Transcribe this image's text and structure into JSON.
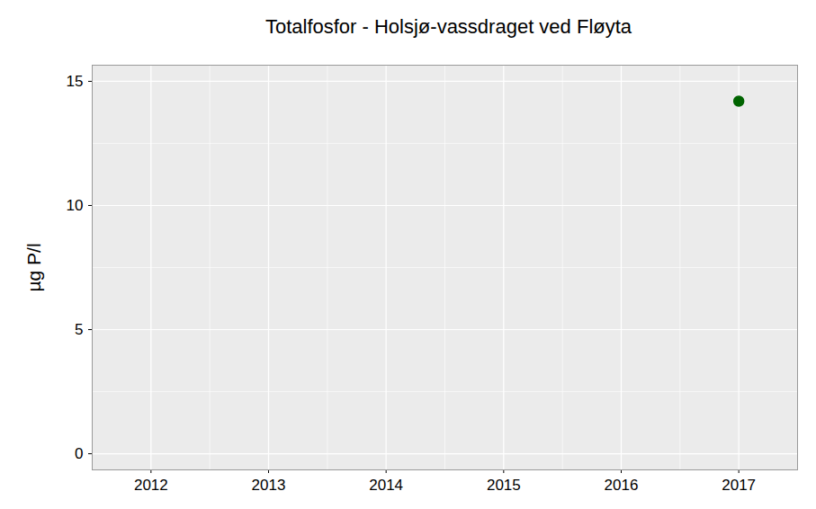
{
  "chart_data": {
    "type": "scatter",
    "title": "Totalfosfor - Holsjø-vassdraget ved Fløyta",
    "y_label": "µg P/l",
    "x": [
      2017
    ],
    "values": [
      14.2
    ],
    "color": "#006400",
    "marker": "circle",
    "xlim": [
      2011.5,
      2017.5
    ],
    "xticks": [
      2012,
      2013,
      2014,
      2015,
      2016,
      2017
    ],
    "ylim": [
      -0.65,
      15.65
    ],
    "yticks": [
      0,
      5,
      10,
      15
    ],
    "grid": true
  }
}
